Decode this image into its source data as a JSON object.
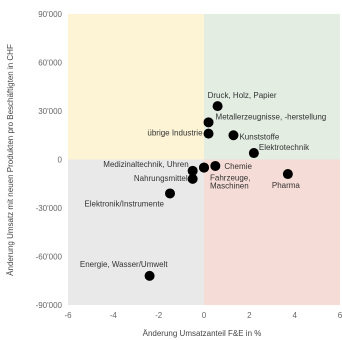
{
  "chart_data": {
    "type": "scatter",
    "xlabel": "Änderung Umsatzanteil F&E in %",
    "ylabel": "Änderung Umsatz mit neuen Produkten pro Beschäftigten in CHF",
    "xlim": [
      -6,
      6
    ],
    "ylim": [
      -90000,
      90000
    ],
    "x_ticks": [
      -6,
      -4,
      -2,
      0,
      2,
      4,
      6
    ],
    "x_tick_labels": [
      "-6",
      "-4",
      "-2",
      "0",
      "2",
      "4",
      "6"
    ],
    "y_ticks": [
      90000,
      60000,
      30000,
      0,
      -30000,
      -60000,
      -90000
    ],
    "y_tick_labels": [
      "90'000",
      "60'000",
      "30'000",
      "0",
      "-30'000",
      "-60'000",
      "-90'000"
    ],
    "grid": false,
    "quadrants": [
      {
        "name": "top-left",
        "color": "#fdf4d6"
      },
      {
        "name": "top-right",
        "color": "#e3ede2"
      },
      {
        "name": "bottom-left",
        "color": "#e9e9e9"
      },
      {
        "name": "bottom-right",
        "color": "#f6dcd6"
      }
    ],
    "marker_color": "#000000",
    "points": [
      {
        "label": "Druck, Holz, Papier",
        "x": 0.6,
        "y": 33000
      },
      {
        "label": "Metallerzeugnisse, -herstellung",
        "x": 0.2,
        "y": 23000
      },
      {
        "label": "übrige Industrie",
        "x": 0.2,
        "y": 16000
      },
      {
        "label": "Kunststoffe",
        "x": 1.3,
        "y": 15000
      },
      {
        "label": "Elektrotechnik",
        "x": 2.2,
        "y": 4000
      },
      {
        "label": "Chemie",
        "x": 0.5,
        "y": -4000
      },
      {
        "label": "Medizinaltechnik, Uhren",
        "x": -0.5,
        "y": -7000
      },
      {
        "label": "",
        "x": 0.0,
        "y": -5000
      },
      {
        "label": "Nahrungsmittel",
        "x": -0.5,
        "y": -12000
      },
      {
        "label": "Fahrzeuge, Maschinen",
        "x": 0.0,
        "y": -5000
      },
      {
        "label": "Pharma",
        "x": 3.7,
        "y": -9000
      },
      {
        "label": "Elektronik/Instrumente",
        "x": -1.5,
        "y": -21000
      },
      {
        "label": "Energie, Wasser/Umwelt",
        "x": -2.4,
        "y": -72000
      }
    ]
  }
}
